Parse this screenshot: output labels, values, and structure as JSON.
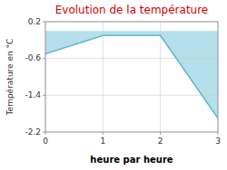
{
  "chart_data": {
    "type": "area",
    "title": "Evolution de la température",
    "xlabel": "heure par heure",
    "ylabel": "Température en °C",
    "x": [
      0,
      1,
      2,
      3
    ],
    "series": [
      {
        "name": "Température",
        "color": "#5bb8d0",
        "values": [
          -0.5,
          -0.1,
          -0.1,
          -1.9
        ]
      }
    ],
    "xlim": [
      0,
      3
    ],
    "ylim": [
      -2.2,
      0.2
    ],
    "xticks": [
      0,
      1,
      2,
      3
    ],
    "yticks": [
      0.2,
      -0.6,
      -1.4,
      -2.2
    ],
    "grid": true
  }
}
